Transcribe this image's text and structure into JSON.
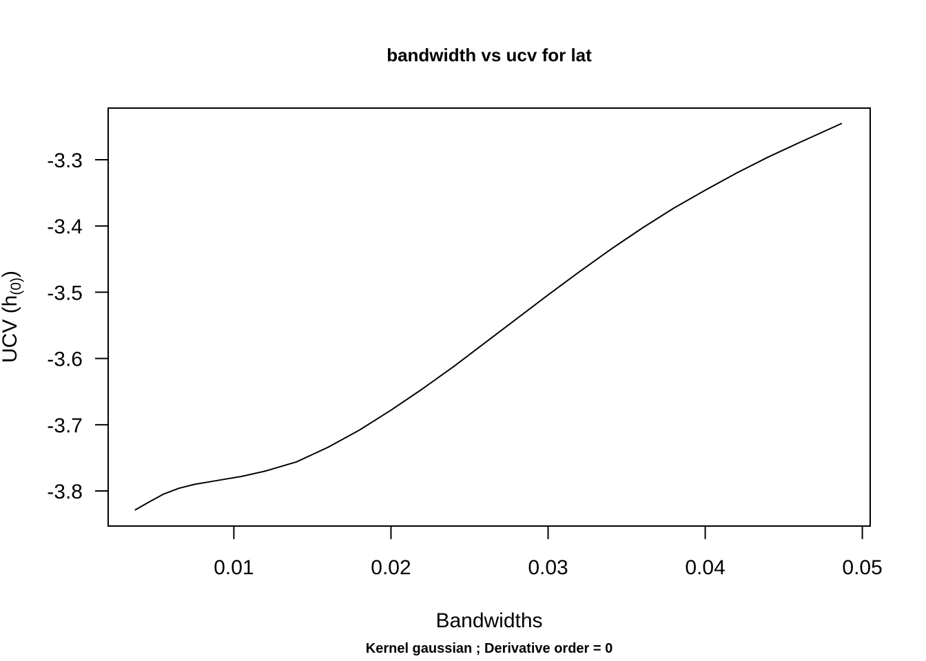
{
  "chart_data": {
    "type": "line",
    "title": "bandwidth vs ucv for lat",
    "xlabel": "Bandwidths",
    "ylabel": {
      "main": "UCV (h",
      "subscript": "(0)",
      "close": ")"
    },
    "subtitle": "Kernel gaussian ; Derivative order =  0",
    "xlim": [
      0.002,
      0.0505
    ],
    "ylim": [
      -3.853,
      -3.222
    ],
    "xticks": [
      0.01,
      0.02,
      0.03,
      0.04,
      0.05
    ],
    "xtick_labels": [
      "0.01",
      "0.02",
      "0.03",
      "0.04",
      "0.05"
    ],
    "yticks": [
      -3.3,
      -3.4,
      -3.5,
      -3.6,
      -3.7,
      -3.8
    ],
    "ytick_labels": [
      "-3.3",
      "-3.4",
      "-3.5",
      "-3.6",
      "-3.7",
      "-3.8"
    ],
    "grid": false,
    "legend": "none",
    "line_color": "#000000",
    "series": [
      {
        "x": [
          0.0037,
          0.0045,
          0.0055,
          0.0065,
          0.0075,
          0.0085,
          0.0095,
          0.0105,
          0.012,
          0.014,
          0.016,
          0.018,
          0.02,
          0.022,
          0.024,
          0.026,
          0.028,
          0.03,
          0.032,
          0.034,
          0.036,
          0.038,
          0.04,
          0.042,
          0.044,
          0.046,
          0.0487
        ],
        "y": [
          -3.829,
          -3.818,
          -3.805,
          -3.796,
          -3.79,
          -3.786,
          -3.782,
          -3.778,
          -3.77,
          -3.756,
          -3.734,
          -3.708,
          -3.678,
          -3.646,
          -3.612,
          -3.576,
          -3.54,
          -3.504,
          -3.469,
          -3.435,
          -3.403,
          -3.373,
          -3.346,
          -3.32,
          -3.296,
          -3.274,
          -3.245
        ]
      }
    ]
  }
}
